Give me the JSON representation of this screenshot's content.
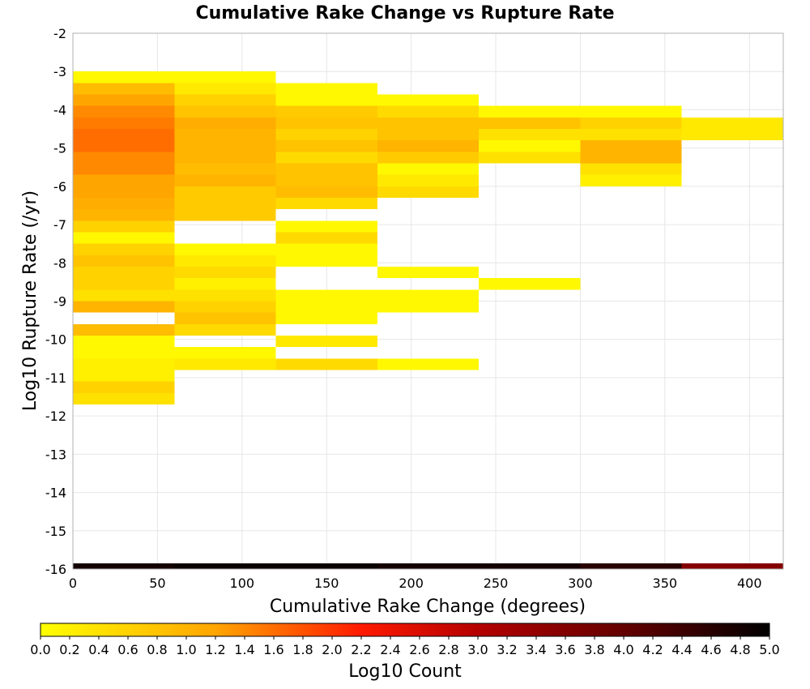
{
  "chart_data": {
    "type": "heatmap",
    "title": "Cumulative Rake Change vs Rupture Rate",
    "xlabel": "Cumulative Rake Change (degrees)",
    "ylabel": "Log10 Rupture Rate (/yr)",
    "xlim": [
      0,
      420
    ],
    "ylim": [
      -16,
      -2
    ],
    "x_ticks": [
      0,
      50,
      100,
      150,
      200,
      250,
      300,
      350,
      400
    ],
    "y_ticks": [
      -2,
      -3,
      -4,
      -5,
      -6,
      -7,
      -8,
      -9,
      -10,
      -11,
      -12,
      -13,
      -14,
      -15,
      -16
    ],
    "x_bin_width": 60,
    "y_bin_width": 0.3,
    "grid": true,
    "colorbar": {
      "label": "Log10 Count",
      "range": [
        0,
        5
      ],
      "ticks": [
        0.0,
        0.2,
        0.4,
        0.6,
        0.8,
        1.0,
        1.2,
        1.4,
        1.6,
        1.8,
        2.0,
        2.2,
        2.4,
        2.6,
        2.8,
        3.0,
        3.2,
        3.4,
        3.6,
        3.8,
        4.0,
        4.2,
        4.4,
        4.6,
        4.8,
        5.0
      ],
      "tick_labels": [
        "0.0",
        "0.2",
        "0.4",
        "0.6",
        "0.8",
        "1.0",
        "1.2",
        "1.4",
        "1.6",
        "1.8",
        "2.0",
        "2.2",
        "2.4",
        "2.6",
        "2.8",
        "3.0",
        "3.2",
        "3.4",
        "3.6",
        "3.8",
        "4.0",
        "4.2",
        "4.4",
        "4.6",
        "4.8",
        "5.0"
      ],
      "scheme": "yellow-orange-red-black",
      "stops": [
        {
          "value": 0.0,
          "color": "#ffff00"
        },
        {
          "value": 1.2,
          "color": "#ffa500"
        },
        {
          "value": 2.2,
          "color": "#ff1a00"
        },
        {
          "value": 3.0,
          "color": "#b40000"
        },
        {
          "value": 4.0,
          "color": "#640000"
        },
        {
          "value": 5.0,
          "color": "#000000"
        }
      ]
    },
    "columns": [
      {
        "x_start": 0,
        "bins": [
          [
            -3.3,
            -3.0,
            0.1
          ],
          [
            -3.6,
            -3.3,
            0.9
          ],
          [
            -3.9,
            -3.6,
            1.2
          ],
          [
            -4.2,
            -3.9,
            1.4
          ],
          [
            -4.5,
            -4.2,
            1.5
          ],
          [
            -4.8,
            -4.5,
            1.6
          ],
          [
            -5.1,
            -4.8,
            1.6
          ],
          [
            -5.4,
            -5.1,
            1.4
          ],
          [
            -5.7,
            -5.4,
            1.4
          ],
          [
            -6.0,
            -5.7,
            1.2
          ],
          [
            -6.3,
            -6.0,
            1.2
          ],
          [
            -6.6,
            -6.3,
            1.1
          ],
          [
            -6.9,
            -6.6,
            1.0
          ],
          [
            -7.2,
            -6.9,
            0.6
          ],
          [
            -7.5,
            -7.2,
            0.1
          ],
          [
            -7.8,
            -7.5,
            0.6
          ],
          [
            -8.1,
            -7.8,
            0.8
          ],
          [
            -8.4,
            -8.1,
            0.6
          ],
          [
            -8.7,
            -8.4,
            0.6
          ],
          [
            -9.0,
            -8.7,
            0.4
          ],
          [
            -9.3,
            -9.0,
            1.0
          ],
          [
            -9.9,
            -9.6,
            0.9
          ],
          [
            -10.2,
            -9.9,
            0.1
          ],
          [
            -10.5,
            -10.2,
            0.1
          ],
          [
            -10.8,
            -10.5,
            0.2
          ],
          [
            -11.1,
            -10.8,
            0.2
          ],
          [
            -11.4,
            -11.1,
            0.6
          ],
          [
            -11.7,
            -11.4,
            0.4
          ],
          [
            -16.0,
            -15.85,
            4.8
          ]
        ]
      },
      {
        "x_start": 60,
        "bins": [
          [
            -3.3,
            -3.0,
            0.1
          ],
          [
            -3.6,
            -3.3,
            0.3
          ],
          [
            -3.9,
            -3.6,
            0.6
          ],
          [
            -4.2,
            -3.9,
            0.8
          ],
          [
            -4.5,
            -4.2,
            1.1
          ],
          [
            -4.8,
            -4.5,
            1.0
          ],
          [
            -5.1,
            -4.8,
            1.0
          ],
          [
            -5.4,
            -5.1,
            1.0
          ],
          [
            -5.7,
            -5.4,
            0.9
          ],
          [
            -6.0,
            -5.7,
            1.0
          ],
          [
            -6.3,
            -6.0,
            0.7
          ],
          [
            -6.6,
            -6.3,
            0.7
          ],
          [
            -6.9,
            -6.6,
            0.7
          ],
          [
            -7.8,
            -7.5,
            0.1
          ],
          [
            -8.1,
            -7.8,
            0.3
          ],
          [
            -8.4,
            -8.1,
            0.5
          ],
          [
            -8.7,
            -8.4,
            0.2
          ],
          [
            -9.0,
            -8.7,
            0.4
          ],
          [
            -9.3,
            -9.0,
            0.6
          ],
          [
            -9.6,
            -9.3,
            0.8
          ],
          [
            -9.9,
            -9.6,
            0.5
          ],
          [
            -10.5,
            -10.2,
            0.1
          ],
          [
            -10.8,
            -10.5,
            0.3
          ],
          [
            -16.0,
            -15.85,
            4.9
          ]
        ]
      },
      {
        "x_start": 120,
        "bins": [
          [
            -3.6,
            -3.3,
            0.1
          ],
          [
            -3.9,
            -3.6,
            0.1
          ],
          [
            -4.2,
            -3.9,
            0.7
          ],
          [
            -4.5,
            -4.2,
            0.8
          ],
          [
            -4.8,
            -4.5,
            0.6
          ],
          [
            -5.1,
            -4.8,
            0.8
          ],
          [
            -5.4,
            -5.1,
            0.5
          ],
          [
            -5.7,
            -5.4,
            0.8
          ],
          [
            -6.0,
            -5.7,
            0.8
          ],
          [
            -6.3,
            -6.0,
            0.9
          ],
          [
            -6.6,
            -6.3,
            0.5
          ],
          [
            -7.2,
            -6.9,
            0.1
          ],
          [
            -7.5,
            -7.2,
            0.5
          ],
          [
            -7.8,
            -7.5,
            0.1
          ],
          [
            -8.1,
            -7.8,
            0.1
          ],
          [
            -9.0,
            -8.7,
            0.1
          ],
          [
            -9.3,
            -9.0,
            0.1
          ],
          [
            -9.6,
            -9.3,
            0.1
          ],
          [
            -10.2,
            -9.9,
            0.3
          ],
          [
            -10.8,
            -10.5,
            0.5
          ],
          [
            -16.0,
            -15.85,
            4.9
          ]
        ]
      },
      {
        "x_start": 180,
        "bins": [
          [
            -3.9,
            -3.6,
            0.1
          ],
          [
            -4.2,
            -3.9,
            0.5
          ],
          [
            -4.5,
            -4.2,
            0.8
          ],
          [
            -4.8,
            -4.5,
            0.8
          ],
          [
            -5.1,
            -4.8,
            1.0
          ],
          [
            -5.4,
            -5.1,
            0.7
          ],
          [
            -5.7,
            -5.4,
            0.1
          ],
          [
            -6.0,
            -5.7,
            0.3
          ],
          [
            -6.3,
            -6.0,
            0.5
          ],
          [
            -8.4,
            -8.1,
            0.1
          ],
          [
            -9.0,
            -8.7,
            0.1
          ],
          [
            -9.3,
            -9.0,
            0.1
          ],
          [
            -10.8,
            -10.5,
            0.1
          ],
          [
            -16.0,
            -15.85,
            4.8
          ]
        ]
      },
      {
        "x_start": 240,
        "bins": [
          [
            -4.2,
            -3.9,
            0.1
          ],
          [
            -4.5,
            -4.2,
            0.8
          ],
          [
            -4.8,
            -4.5,
            0.4
          ],
          [
            -5.1,
            -4.8,
            0.1
          ],
          [
            -5.4,
            -5.1,
            0.4
          ],
          [
            -8.7,
            -8.4,
            0.1
          ],
          [
            -16.0,
            -15.85,
            4.8
          ]
        ]
      },
      {
        "x_start": 300,
        "bins": [
          [
            -4.2,
            -3.9,
            0.1
          ],
          [
            -4.5,
            -4.2,
            0.6
          ],
          [
            -4.8,
            -4.5,
            0.4
          ],
          [
            -5.1,
            -4.8,
            1.0
          ],
          [
            -5.4,
            -5.1,
            1.0
          ],
          [
            -5.7,
            -5.4,
            0.4
          ],
          [
            -6.0,
            -5.7,
            0.2
          ],
          [
            -16.0,
            -15.85,
            4.6
          ]
        ]
      },
      {
        "x_start": 360,
        "bins": [
          [
            -4.5,
            -4.2,
            0.3
          ],
          [
            -4.8,
            -4.5,
            0.3
          ],
          [
            -16.0,
            -15.85,
            3.6
          ]
        ]
      }
    ]
  }
}
